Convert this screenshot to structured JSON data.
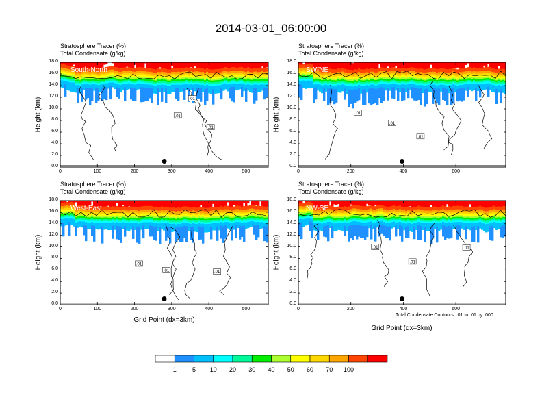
{
  "title": "2014-03-01_06:00:00",
  "panel_subtitle_1": "Stratosphere Tracer   (%)",
  "panel_subtitle_2": "Total Condensate   (g/kg)",
  "ylabel": "Height (km)",
  "xlabel": "Grid Point (dx=3km)",
  "contour_note": "Total Condensate Contours: .01 to .01 by .000",
  "contour_label": ".01",
  "colorbar": {
    "levels": [
      "1",
      "5",
      "10",
      "20",
      "30",
      "40",
      "50",
      "60",
      "70",
      "100"
    ],
    "colors": [
      "#ffffff",
      "#1e90ff",
      "#00bfff",
      "#00ffff",
      "#00fa9a",
      "#00ee00",
      "#adff2f",
      "#ffff00",
      "#ffd700",
      "#ffa500",
      "#ff4500",
      "#ff0000"
    ]
  },
  "chart_data": [
    {
      "type": "heatmap",
      "panel": "South-North",
      "ylim": [
        0,
        18
      ],
      "yticks": [
        "0.0",
        "2.0",
        "4.0",
        "6.0",
        "8.0",
        "10.0",
        "12.0",
        "14.0",
        "16.0",
        "18.0"
      ],
      "xlim": [
        0,
        560
      ],
      "xticks": [
        "0",
        "100",
        "200",
        "300",
        "400",
        "500"
      ],
      "marker_x": 280
    },
    {
      "type": "heatmap",
      "panel": "SW-NE",
      "ylim": [
        0,
        18
      ],
      "yticks": [
        "0.0",
        "2.0",
        "4.0",
        "6.0",
        "8.0",
        "10.0",
        "12.0",
        "14.0",
        "16.0",
        "18.0"
      ],
      "xlim": [
        0,
        790
      ],
      "xticks": [
        "0",
        "200",
        "400",
        "600"
      ],
      "marker_x": 395
    },
    {
      "type": "heatmap",
      "panel": "West-East",
      "ylim": [
        0,
        18
      ],
      "yticks": [
        "0.0",
        "2.0",
        "4.0",
        "6.0",
        "8.0",
        "10.0",
        "12.0",
        "14.0",
        "16.0",
        "18.0"
      ],
      "xlim": [
        0,
        560
      ],
      "xticks": [
        "0",
        "100",
        "200",
        "300",
        "400",
        "500"
      ],
      "marker_x": 280
    },
    {
      "type": "heatmap",
      "panel": "NW-SE",
      "ylim": [
        0,
        18
      ],
      "yticks": [
        "0.0",
        "2.0",
        "4.0",
        "6.0",
        "8.0",
        "10.0",
        "12.0",
        "14.0",
        "16.0",
        "18.0"
      ],
      "xlim": [
        0,
        790
      ],
      "xticks": [
        "0",
        "200",
        "400",
        "600"
      ],
      "marker_x": 395
    }
  ]
}
